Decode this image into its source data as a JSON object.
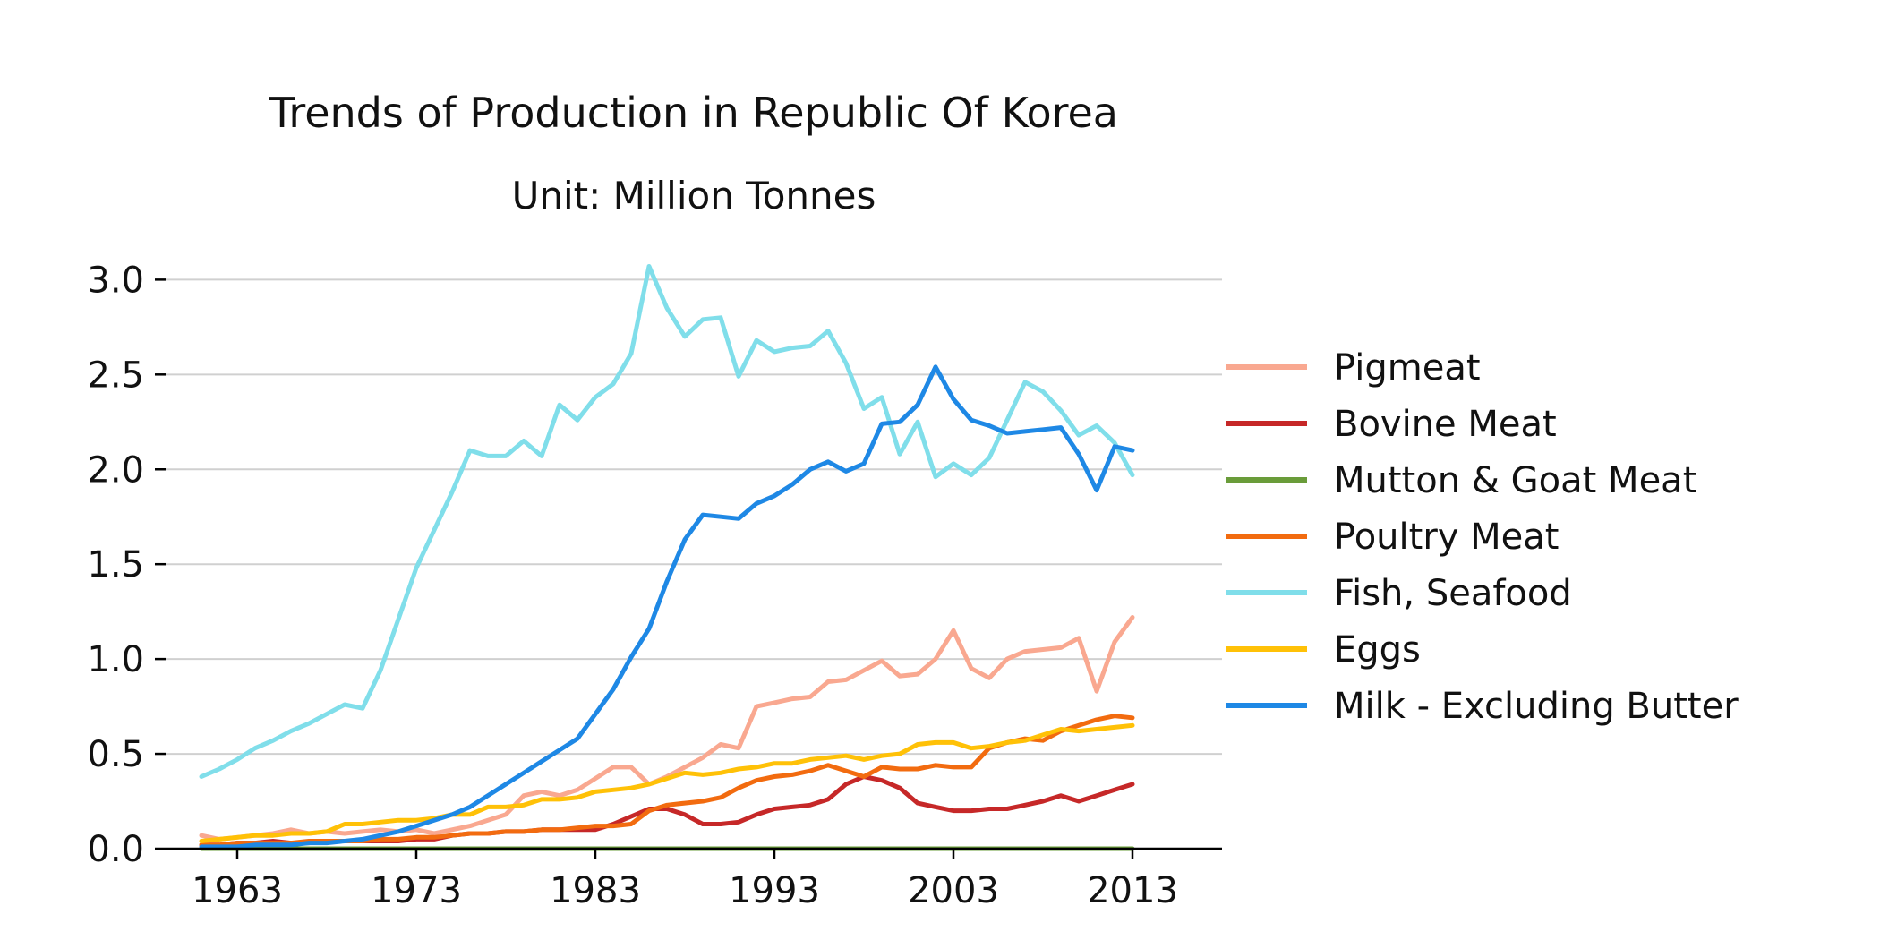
{
  "chart_data": {
    "type": "line",
    "title": "Trends of Production in Republic Of Korea",
    "subtitle": "Unit: Million Tonnes",
    "xlabel": "",
    "ylabel": "",
    "x": [
      1961,
      1962,
      1963,
      1964,
      1965,
      1966,
      1967,
      1968,
      1969,
      1970,
      1971,
      1972,
      1973,
      1974,
      1975,
      1976,
      1977,
      1978,
      1979,
      1980,
      1981,
      1982,
      1983,
      1984,
      1985,
      1986,
      1987,
      1988,
      1989,
      1990,
      1991,
      1992,
      1993,
      1994,
      1995,
      1996,
      1997,
      1998,
      1999,
      2000,
      2001,
      2002,
      2003,
      2004,
      2005,
      2006,
      2007,
      2008,
      2009,
      2010,
      2011,
      2012,
      2013
    ],
    "xticks": [
      1963,
      1973,
      1983,
      1993,
      2003,
      2013
    ],
    "xlim": [
      1959,
      2018
    ],
    "yticks": [
      0.0,
      0.5,
      1.0,
      1.5,
      2.0,
      2.5,
      3.0
    ],
    "ytick_labels": [
      "0.0",
      "0.5",
      "1.0",
      "1.5",
      "2.0",
      "2.5",
      "3.0"
    ],
    "ylim": [
      0,
      3.2
    ],
    "grid": "horizontal",
    "legend_position": "right",
    "series": [
      {
        "name": "Pigmeat",
        "color": "#f9a890",
        "values": [
          0.07,
          0.05,
          0.06,
          0.07,
          0.08,
          0.1,
          0.08,
          0.09,
          0.08,
          0.09,
          0.1,
          0.09,
          0.1,
          0.08,
          0.1,
          0.12,
          0.15,
          0.18,
          0.28,
          0.3,
          0.28,
          0.31,
          0.37,
          0.43,
          0.43,
          0.34,
          0.38,
          0.43,
          0.48,
          0.55,
          0.53,
          0.75,
          0.77,
          0.79,
          0.8,
          0.88,
          0.89,
          0.94,
          0.99,
          0.91,
          0.92,
          1.0,
          1.15,
          0.95,
          0.9,
          1.0,
          1.04,
          1.05,
          1.06,
          1.11,
          0.83,
          1.09,
          1.22
        ]
      },
      {
        "name": "Bovine Meat",
        "color": "#c62828",
        "values": [
          0.02,
          0.02,
          0.03,
          0.03,
          0.04,
          0.03,
          0.03,
          0.04,
          0.04,
          0.04,
          0.04,
          0.04,
          0.05,
          0.05,
          0.07,
          0.08,
          0.08,
          0.09,
          0.09,
          0.1,
          0.1,
          0.1,
          0.1,
          0.13,
          0.17,
          0.21,
          0.21,
          0.18,
          0.13,
          0.13,
          0.14,
          0.18,
          0.21,
          0.22,
          0.23,
          0.26,
          0.34,
          0.38,
          0.36,
          0.32,
          0.24,
          0.22,
          0.2,
          0.2,
          0.21,
          0.21,
          0.23,
          0.25,
          0.28,
          0.25,
          0.28,
          0.31,
          0.34
        ]
      },
      {
        "name": "Mutton & Goat Meat",
        "color": "#6a9c3a",
        "values": [
          0.0,
          0.0,
          0.0,
          0.0,
          0.0,
          0.0,
          0.0,
          0.0,
          0.0,
          0.0,
          0.0,
          0.0,
          0.0,
          0.0,
          0.0,
          0.0,
          0.0,
          0.0,
          0.0,
          0.0,
          0.0,
          0.0,
          0.0,
          0.0,
          0.0,
          0.0,
          0.0,
          0.0,
          0.0,
          0.0,
          0.0,
          0.0,
          0.0,
          0.0,
          0.0,
          0.0,
          0.0,
          0.0,
          0.0,
          0.0,
          0.0,
          0.0,
          0.0,
          0.0,
          0.0,
          0.0,
          0.0,
          0.0,
          0.0,
          0.0,
          0.0,
          0.0,
          0.0
        ]
      },
      {
        "name": "Poultry Meat",
        "color": "#f26b0f",
        "values": [
          0.02,
          0.02,
          0.03,
          0.03,
          0.03,
          0.03,
          0.04,
          0.04,
          0.04,
          0.04,
          0.05,
          0.05,
          0.06,
          0.06,
          0.07,
          0.08,
          0.08,
          0.09,
          0.09,
          0.1,
          0.1,
          0.11,
          0.12,
          0.12,
          0.13,
          0.2,
          0.23,
          0.24,
          0.25,
          0.27,
          0.32,
          0.36,
          0.38,
          0.39,
          0.41,
          0.44,
          0.41,
          0.38,
          0.43,
          0.42,
          0.42,
          0.44,
          0.43,
          0.43,
          0.53,
          0.56,
          0.58,
          0.57,
          0.62,
          0.65,
          0.68,
          0.7,
          0.69
        ]
      },
      {
        "name": "Fish, Seafood",
        "color": "#80deea",
        "values": [
          0.38,
          0.42,
          0.47,
          0.53,
          0.57,
          0.62,
          0.66,
          0.71,
          0.76,
          0.74,
          0.94,
          1.21,
          1.48,
          1.68,
          1.88,
          2.1,
          2.07,
          2.07,
          2.15,
          2.07,
          2.34,
          2.26,
          2.38,
          2.45,
          2.61,
          3.07,
          2.85,
          2.7,
          2.79,
          2.8,
          2.49,
          2.68,
          2.62,
          2.64,
          2.65,
          2.73,
          2.56,
          2.32,
          2.38,
          2.08,
          2.25,
          1.96,
          2.03,
          1.97,
          2.06,
          2.26,
          2.46,
          2.41,
          2.31,
          2.18,
          2.23,
          2.14,
          1.97
        ]
      },
      {
        "name": "Eggs",
        "color": "#ffc107",
        "values": [
          0.04,
          0.05,
          0.06,
          0.07,
          0.07,
          0.08,
          0.08,
          0.09,
          0.13,
          0.13,
          0.14,
          0.15,
          0.15,
          0.16,
          0.18,
          0.18,
          0.22,
          0.22,
          0.23,
          0.26,
          0.26,
          0.27,
          0.3,
          0.31,
          0.32,
          0.34,
          0.37,
          0.4,
          0.39,
          0.4,
          0.42,
          0.43,
          0.45,
          0.45,
          0.47,
          0.48,
          0.49,
          0.47,
          0.49,
          0.5,
          0.55,
          0.56,
          0.56,
          0.53,
          0.54,
          0.56,
          0.57,
          0.6,
          0.63,
          0.62,
          0.63,
          0.64,
          0.65
        ]
      },
      {
        "name": "Milk - Excluding Butter",
        "color": "#1e88e5",
        "values": [
          0.01,
          0.01,
          0.01,
          0.02,
          0.02,
          0.02,
          0.03,
          0.03,
          0.04,
          0.05,
          0.07,
          0.09,
          0.12,
          0.15,
          0.18,
          0.22,
          0.28,
          0.34,
          0.4,
          0.46,
          0.52,
          0.58,
          0.71,
          0.84,
          1.01,
          1.16,
          1.41,
          1.63,
          1.76,
          1.75,
          1.74,
          1.82,
          1.86,
          1.92,
          2.0,
          2.04,
          1.99,
          2.03,
          2.24,
          2.25,
          2.34,
          2.54,
          2.37,
          2.26,
          2.23,
          2.19,
          2.2,
          2.21,
          2.22,
          2.08,
          1.89,
          2.12,
          2.1
        ]
      }
    ]
  }
}
